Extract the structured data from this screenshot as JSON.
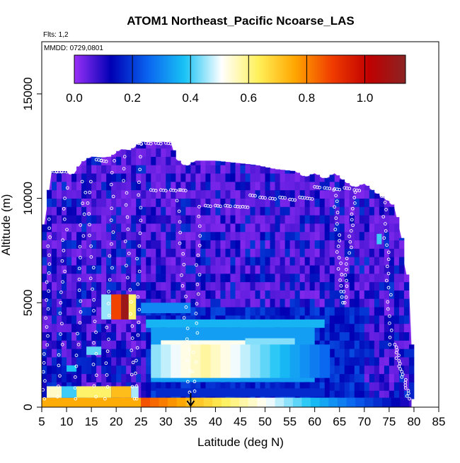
{
  "chart_data": {
    "type": "heatmap",
    "title": "ATOM1 Northeast_Pacific Ncoarse_LAS",
    "subtitle_flights": "Flts: 1,2",
    "subtitle_dates": "MMDD: 0729,0801",
    "xlabel": "Latitude (deg N)",
    "ylabel": "Altitude (m)",
    "xlim": [
      5,
      85
    ],
    "ylim": [
      0,
      17500
    ],
    "x_ticks": [
      5,
      10,
      15,
      20,
      25,
      30,
      35,
      40,
      45,
      50,
      55,
      60,
      65,
      70,
      75,
      80,
      85
    ],
    "y_ticks": [
      0,
      5000,
      10000,
      15000
    ],
    "colorbar": {
      "ticks": [
        "0.0",
        "0.2",
        "0.4",
        "0.6",
        "0.8",
        "1.0"
      ],
      "range": [
        0,
        1.14
      ],
      "stops": [
        "#9a30f8",
        "#0000b4",
        "#0a64f0",
        "#19c3f5",
        "#ffffff",
        "#fff05a",
        "#ffa600",
        "#f03c00",
        "#c00000",
        "#8b2323"
      ]
    },
    "marker_latitude": 35,
    "flight_track": [
      [
        24.0,
        12650
      ],
      [
        26,
        12650
      ],
      [
        28,
        12650
      ],
      [
        30,
        12650
      ],
      [
        31.5,
        12650
      ],
      [
        27,
        10400
      ],
      [
        29,
        10400
      ],
      [
        31,
        10400
      ],
      [
        33,
        10400
      ],
      [
        38,
        9650
      ],
      [
        40,
        9650
      ],
      [
        42,
        9650
      ],
      [
        44,
        9620
      ],
      [
        45.5,
        9600
      ],
      [
        47,
        10150
      ],
      [
        49,
        10050
      ],
      [
        51,
        10000
      ],
      [
        53,
        10050
      ],
      [
        55,
        9950
      ],
      [
        57,
        10050
      ],
      [
        58.5,
        10000
      ],
      [
        60,
        10550
      ],
      [
        62,
        10500
      ],
      [
        64,
        10450
      ],
      [
        66,
        10500
      ],
      [
        68,
        10400
      ],
      [
        73.5,
        10100
      ],
      [
        75,
        9950
      ],
      [
        76.5,
        9800
      ],
      [
        7,
        11300
      ],
      [
        8,
        11300
      ],
      [
        9,
        11300
      ],
      [
        16,
        11850
      ],
      [
        17,
        11800
      ]
    ],
    "flight_profiles": [
      {
        "lat_start": 5.5,
        "lat_end": 6.5,
        "alt_start": 400,
        "alt_end": 9000
      },
      {
        "lat_start": 8.5,
        "lat_end": 10.0,
        "alt_start": 500,
        "alt_end": 10500
      },
      {
        "lat_start": 12.0,
        "lat_end": 13.5,
        "alt_start": 400,
        "alt_end": 10800
      },
      {
        "lat_start": 14.5,
        "lat_end": 16.0,
        "alt_start": 10800,
        "alt_end": 500
      },
      {
        "lat_start": 18.0,
        "lat_end": 19.5,
        "alt_start": 400,
        "alt_end": 11800
      },
      {
        "lat_start": 21.5,
        "lat_end": 23.5,
        "alt_start": 12000,
        "alt_end": 400
      },
      {
        "lat_start": 24.0,
        "lat_end": 25.0,
        "alt_start": 400,
        "alt_end": 12600
      },
      {
        "lat_start": 32.5,
        "lat_end": 35.0,
        "alt_start": 10400,
        "alt_end": 200
      },
      {
        "lat_start": 35.5,
        "lat_end": 37.0,
        "alt_start": 300,
        "alt_end": 9600
      },
      {
        "lat_start": 64.0,
        "lat_end": 65.5,
        "alt_start": 10400,
        "alt_end": 5000
      },
      {
        "lat_start": 66.0,
        "lat_end": 68.0,
        "alt_start": 5000,
        "alt_end": 10300
      },
      {
        "lat_start": 74.0,
        "lat_end": 75.5,
        "alt_start": 9800,
        "alt_end": 3000
      },
      {
        "lat_start": 76.0,
        "lat_end": 79.0,
        "alt_start": 3000,
        "alt_end": 400
      }
    ],
    "envelope_top": [
      [
        5,
        8000
      ],
      [
        6,
        9500
      ],
      [
        7,
        11300
      ],
      [
        10,
        11300
      ],
      [
        11,
        11000
      ],
      [
        13,
        11700
      ],
      [
        15,
        12000
      ],
      [
        17,
        11950
      ],
      [
        19,
        12000
      ],
      [
        21,
        12350
      ],
      [
        23,
        12300
      ],
      [
        25,
        12700
      ],
      [
        31,
        12700
      ],
      [
        32,
        11900
      ],
      [
        34,
        11500
      ],
      [
        36,
        11800
      ],
      [
        40,
        11800
      ],
      [
        44,
        11700
      ],
      [
        48,
        11600
      ],
      [
        52,
        11400
      ],
      [
        56,
        11300
      ],
      [
        58,
        11000
      ],
      [
        60,
        11200
      ],
      [
        62,
        10900
      ],
      [
        64,
        11200
      ],
      [
        66,
        10800
      ],
      [
        68,
        10500
      ],
      [
        70,
        10700
      ],
      [
        72,
        10300
      ],
      [
        74,
        10000
      ],
      [
        76,
        9600
      ],
      [
        77.5,
        8100
      ],
      [
        78,
        6900
      ],
      [
        79,
        5800
      ],
      [
        79.5,
        3000
      ],
      [
        79.5,
        0
      ]
    ],
    "cells": [
      {
        "lat0": 5,
        "lat1": 25,
        "alt0": 0,
        "alt1": 450,
        "value": 0.75
      },
      {
        "lat0": 25,
        "lat1": 35,
        "alt0": 0,
        "alt1": 450,
        "value": 0.84
      },
      {
        "lat0": 35,
        "lat1": 46,
        "alt0": 0,
        "alt1": 450,
        "value": 0.66
      },
      {
        "lat0": 46,
        "lat1": 56,
        "alt0": 0,
        "alt1": 450,
        "value": 0.5
      },
      {
        "lat0": 56,
        "lat1": 65,
        "alt0": 0,
        "alt1": 450,
        "value": 0.37
      },
      {
        "lat0": 65,
        "lat1": 72,
        "alt0": 0,
        "alt1": 450,
        "value": 0.24
      },
      {
        "lat0": 72,
        "lat1": 79.5,
        "alt0": 0,
        "alt1": 450,
        "value": 0.06
      },
      {
        "lat0": 6,
        "lat1": 9,
        "alt0": 450,
        "alt1": 1000,
        "value": 0.55
      },
      {
        "lat0": 12,
        "lat1": 19,
        "alt0": 450,
        "alt1": 1000,
        "value": 0.62
      },
      {
        "lat0": 19,
        "lat1": 23,
        "alt0": 450,
        "alt1": 1000,
        "value": 0.72
      },
      {
        "lat0": 23,
        "lat1": 24.5,
        "alt0": 450,
        "alt1": 1000,
        "value": 0.46
      },
      {
        "lat0": 9,
        "lat1": 12,
        "alt0": 450,
        "alt1": 1000,
        "value": 0.4
      },
      {
        "lat0": 28,
        "lat1": 62,
        "alt0": 500,
        "alt1": 900,
        "value": 0.18
      },
      {
        "lat0": 27,
        "lat1": 60,
        "alt0": 1200,
        "alt1": 3800,
        "value": 0.33
      },
      {
        "lat0": 29,
        "lat1": 46,
        "alt0": 1500,
        "alt1": 3200,
        "value": 0.52
      },
      {
        "lat0": 31,
        "lat1": 44,
        "alt0": 1800,
        "alt1": 2800,
        "value": 0.58
      },
      {
        "lat0": 46,
        "lat1": 56,
        "alt0": 1500,
        "alt1": 3300,
        "value": 0.44
      },
      {
        "lat0": 26,
        "lat1": 62,
        "alt0": 3800,
        "alt1": 4200,
        "value": 0.36
      },
      {
        "lat0": 14,
        "lat1": 17,
        "alt0": 2500,
        "alt1": 2900,
        "value": 0.42
      },
      {
        "lat0": 10,
        "lat1": 12,
        "alt0": 1700,
        "alt1": 2000,
        "value": 0.38
      },
      {
        "lat0": 17,
        "lat1": 19,
        "alt0": 4200,
        "alt1": 5400,
        "value": 0.45
      },
      {
        "lat0": 19,
        "lat1": 21,
        "alt0": 4200,
        "alt1": 5400,
        "value": 0.88
      },
      {
        "lat0": 21,
        "lat1": 22.5,
        "alt0": 4200,
        "alt1": 5400,
        "value": 1.1
      },
      {
        "lat0": 22.5,
        "lat1": 24,
        "alt0": 4200,
        "alt1": 5400,
        "value": 0.62
      },
      {
        "lat0": 25,
        "lat1": 35,
        "alt0": 4500,
        "alt1": 5000,
        "value": 0.3
      },
      {
        "lat0": 72.5,
        "lat1": 73.5,
        "alt0": 7800,
        "alt1": 8300,
        "value": 0.4
      }
    ]
  }
}
